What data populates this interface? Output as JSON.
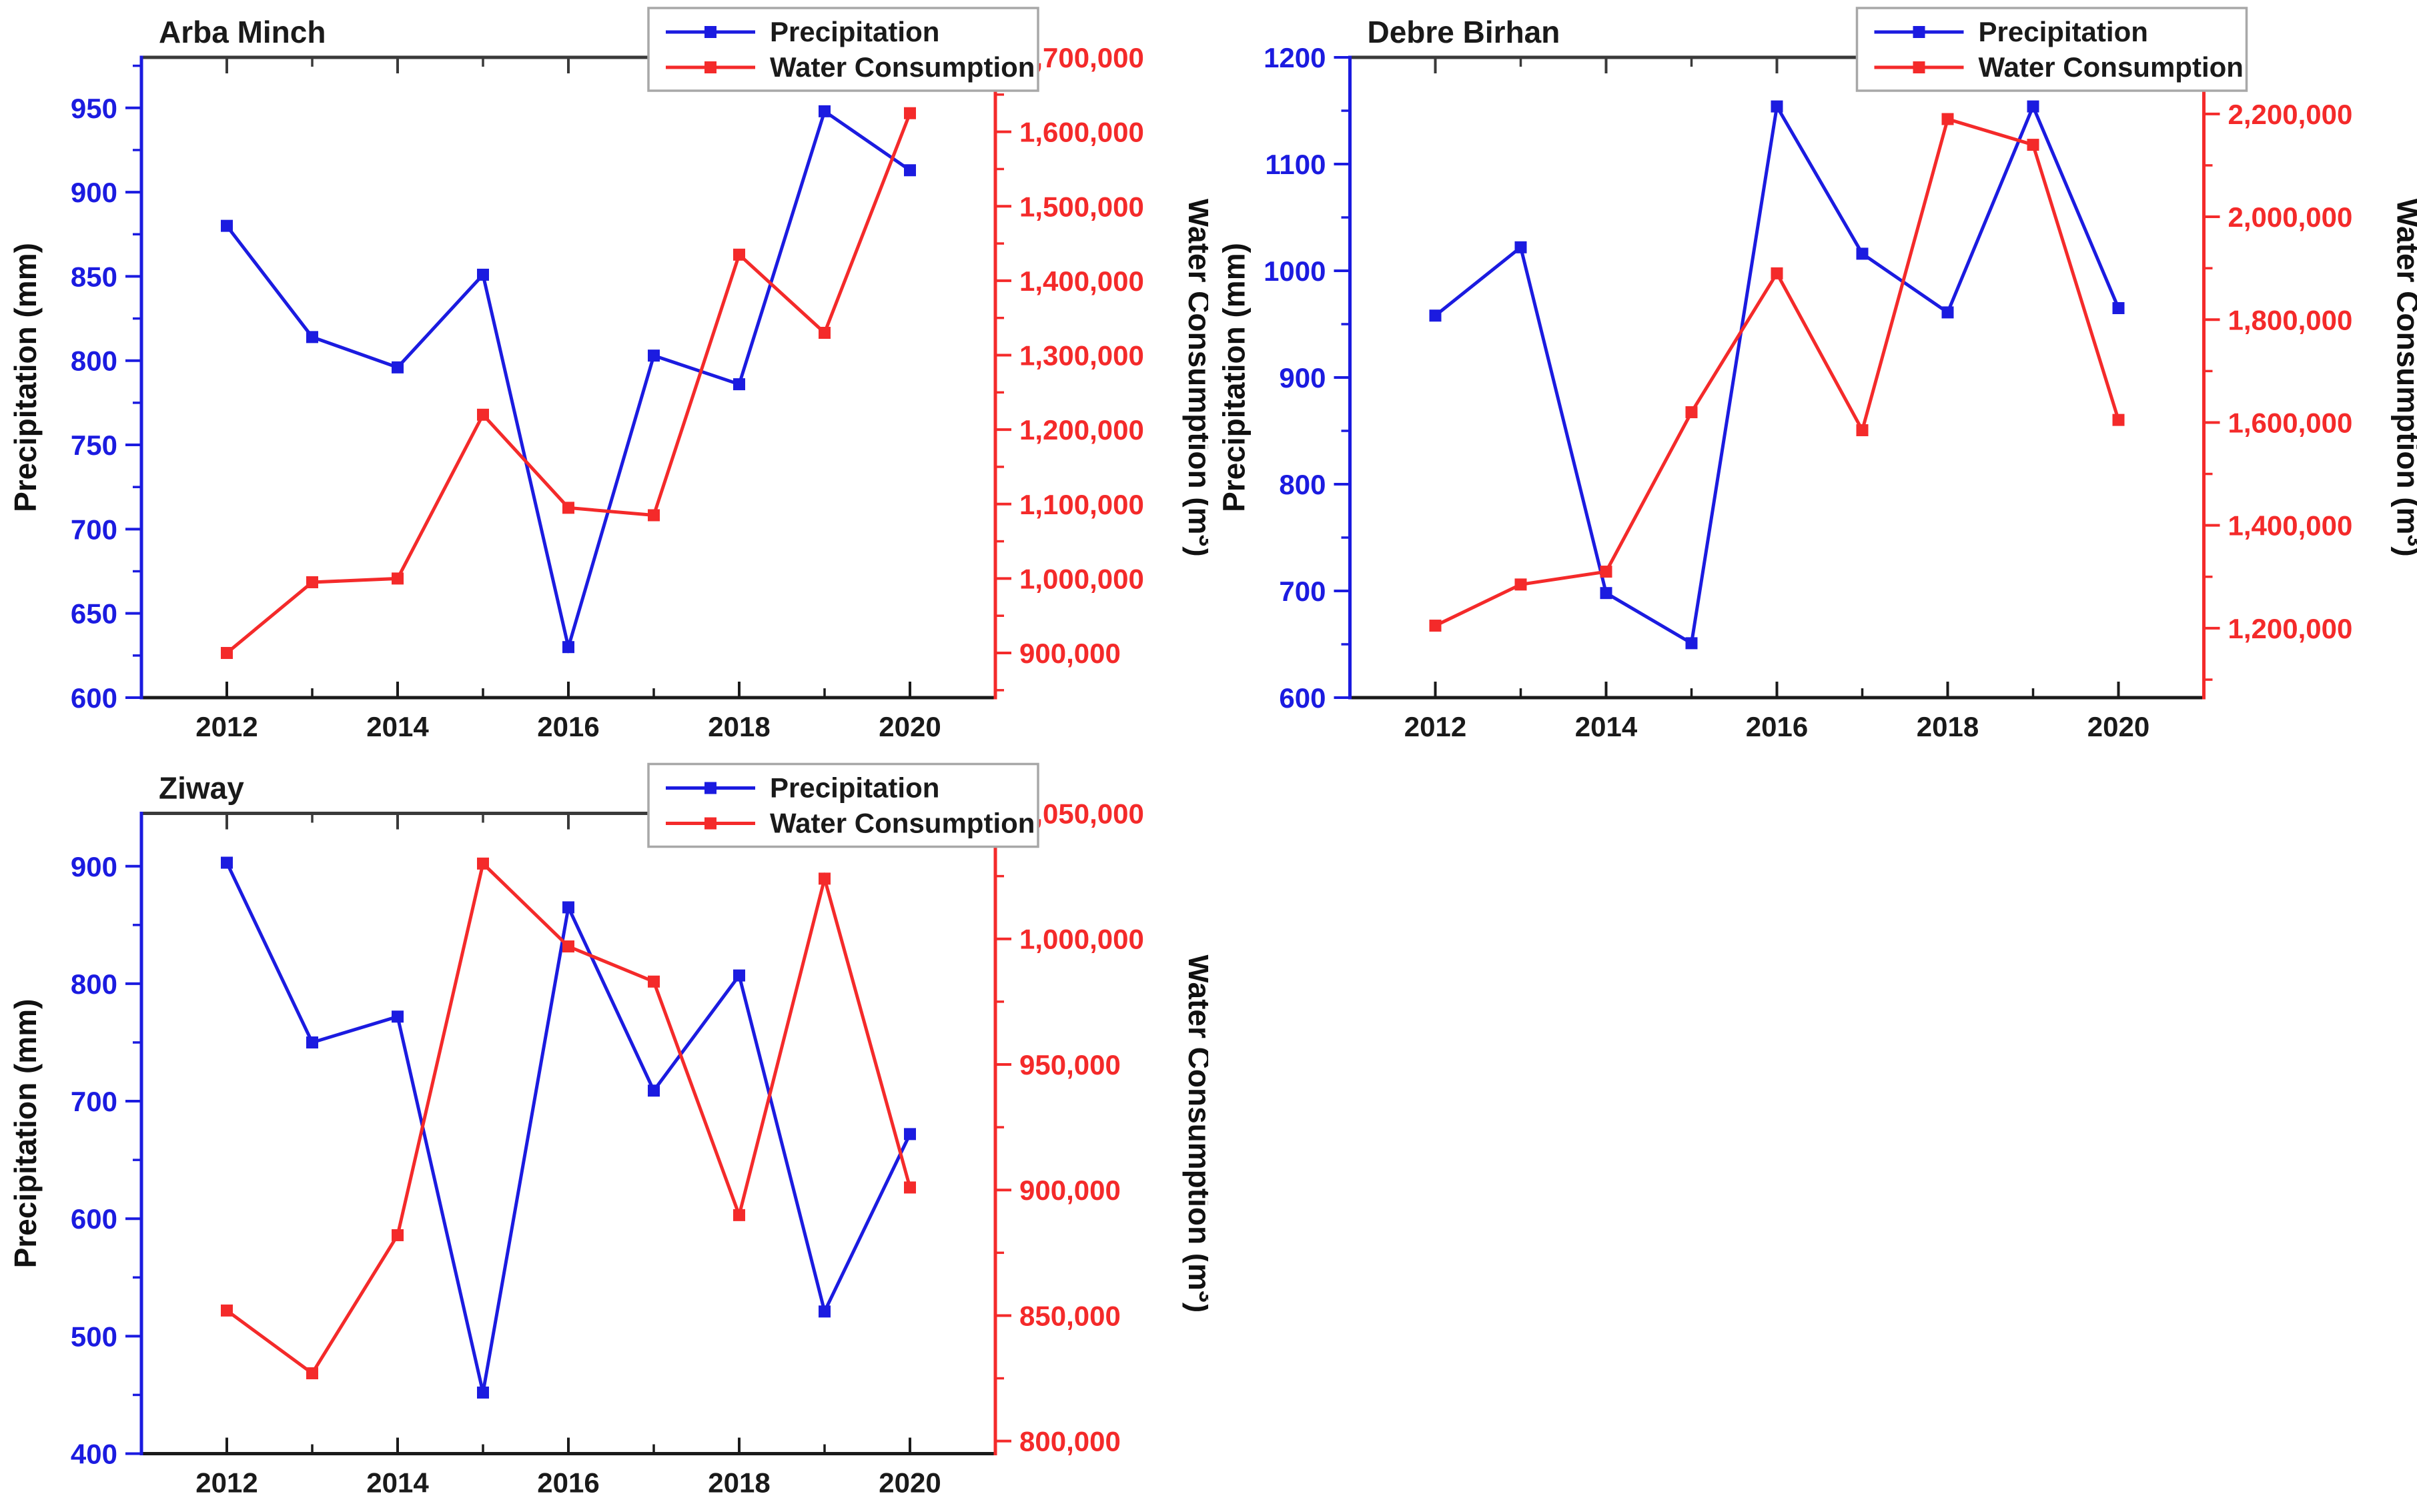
{
  "figure": {
    "background": "#ffffff",
    "precipitation_color": "#1b1be0",
    "water_color": "#f42a2a",
    "frame_top_color": "#3a3a3a",
    "frame_bottom_color": "#1a1a1a",
    "text_color": "#1a1a1a"
  },
  "legend": {
    "items": [
      {
        "label": "Precipitation",
        "color": "#1b1be0"
      },
      {
        "label": "Water Consumption",
        "color": "#f42a2a"
      }
    ],
    "border_color": "#a8a8a8",
    "position": "top-right"
  },
  "chart_data": [
    {
      "type": "line",
      "title": "Arba Minch",
      "x": [
        2012,
        2013,
        2014,
        2015,
        2016,
        2017,
        2018,
        2019,
        2020
      ],
      "x_axis": {
        "range": [
          2011,
          2021
        ],
        "major_ticks": [
          2012,
          2014,
          2016,
          2018,
          2020
        ],
        "minor_ticks": [
          2013,
          2015,
          2017,
          2019
        ],
        "labels": [
          "2012",
          "2014",
          "2016",
          "2018",
          "2020"
        ]
      },
      "left_axis": {
        "label": "Precipitation (mm)",
        "color": "#1b1be0",
        "range": [
          600,
          980
        ],
        "first_tick": 600,
        "last_tick": 950,
        "major_step": 50,
        "minor_step": 25,
        "tick_labels": [
          "600",
          "650",
          "700",
          "750",
          "800",
          "850",
          "900",
          "950"
        ]
      },
      "right_axis": {
        "label": "Water Consumption (m³)",
        "color": "#f42a2a",
        "range": [
          840000,
          1700000
        ],
        "first_tick": 900000,
        "last_tick": 1700000,
        "major_step": 100000,
        "minor_step": 50000,
        "tick_labels": [
          "900,000",
          "1,000,000",
          "1,100,000",
          "1,200,000",
          "1,300,000",
          "1,400,000",
          "1,500,000",
          "1,600,000",
          "1,700,000"
        ]
      },
      "series": [
        {
          "name": "Precipitation",
          "axis": "left",
          "color": "#1b1be0",
          "values": [
            880,
            814,
            796,
            851,
            630,
            803,
            786,
            948,
            913
          ]
        },
        {
          "name": "Water Consumption",
          "axis": "right",
          "color": "#f42a2a",
          "values": [
            900000,
            995000,
            1000000,
            1220000,
            1095000,
            1085000,
            1435000,
            1330000,
            1625000
          ]
        }
      ],
      "legend_items": [
        "Precipitation",
        "Water Consumption"
      ]
    },
    {
      "type": "line",
      "title": "Debre Birhan",
      "x": [
        2012,
        2013,
        2014,
        2015,
        2016,
        2017,
        2018,
        2019,
        2020
      ],
      "x_axis": {
        "range": [
          2011,
          2021
        ],
        "major_ticks": [
          2012,
          2014,
          2016,
          2018,
          2020
        ],
        "minor_ticks": [
          2013,
          2015,
          2017,
          2019
        ],
        "labels": [
          "2012",
          "2014",
          "2016",
          "2018",
          "2020"
        ]
      },
      "left_axis": {
        "label": "Precipitation (mm)",
        "color": "#1b1be0",
        "range": [
          600,
          1200
        ],
        "first_tick": 600,
        "last_tick": 1200,
        "major_step": 100,
        "minor_step": 50,
        "tick_labels": [
          "600",
          "700",
          "800",
          "900",
          "1000",
          "1100",
          "1200"
        ]
      },
      "right_axis": {
        "label": "Water Consumption (m³)",
        "color": "#f42a2a",
        "range": [
          1065000,
          2310000
        ],
        "first_tick": 1200000,
        "last_tick": 2200000,
        "major_step": 200000,
        "minor_step": 100000,
        "tick_labels": [
          "1,200,000",
          "1,400,000",
          "1,600,000",
          "1,800,000",
          "2,000,000",
          "2,200,000"
        ]
      },
      "series": [
        {
          "name": "Precipitation",
          "axis": "left",
          "color": "#1b1be0",
          "values": [
            958,
            1022,
            698,
            651,
            1154,
            1016,
            961,
            1154,
            965
          ]
        },
        {
          "name": "Water Consumption",
          "axis": "right",
          "color": "#f42a2a",
          "values": [
            1205000,
            1285000,
            1310000,
            1620000,
            1890000,
            1585000,
            2190000,
            2140000,
            1605000
          ]
        }
      ],
      "legend_items": [
        "Precipitation",
        "Water Consumption"
      ]
    },
    {
      "type": "line",
      "title": "Ziway",
      "x": [
        2012,
        2013,
        2014,
        2015,
        2016,
        2017,
        2018,
        2019,
        2020
      ],
      "x_axis": {
        "range": [
          2011,
          2021
        ],
        "major_ticks": [
          2012,
          2014,
          2016,
          2018,
          2020
        ],
        "minor_ticks": [
          2013,
          2015,
          2017,
          2019
        ],
        "labels": [
          "2012",
          "2014",
          "2016",
          "2018",
          "2020"
        ]
      },
      "left_axis": {
        "label": "Precipitation (mm)",
        "color": "#1b1be0",
        "range": [
          400,
          945
        ],
        "first_tick": 400,
        "last_tick": 900,
        "major_step": 100,
        "minor_step": 50,
        "tick_labels": [
          "400",
          "500",
          "600",
          "700",
          "800",
          "900"
        ]
      },
      "right_axis": {
        "label": "Water Consumption (m³)",
        "color": "#f42a2a",
        "range": [
          795000,
          1050000
        ],
        "first_tick": 800000,
        "last_tick": 1050000,
        "major_step": 50000,
        "minor_step": 25000,
        "tick_labels": [
          "800,000",
          "850,000",
          "900,000",
          "950,000",
          "1,000,000",
          "1,050,000"
        ]
      },
      "series": [
        {
          "name": "Precipitation",
          "axis": "left",
          "color": "#1b1be0",
          "values": [
            903,
            750,
            772,
            452,
            865,
            709,
            807,
            521,
            672
          ]
        },
        {
          "name": "Water Consumption",
          "axis": "right",
          "color": "#f42a2a",
          "values": [
            852000,
            827000,
            882000,
            1030000,
            997000,
            983000,
            890000,
            1024000,
            901000
          ]
        }
      ],
      "legend_items": [
        "Precipitation",
        "Water Consumption"
      ]
    }
  ]
}
